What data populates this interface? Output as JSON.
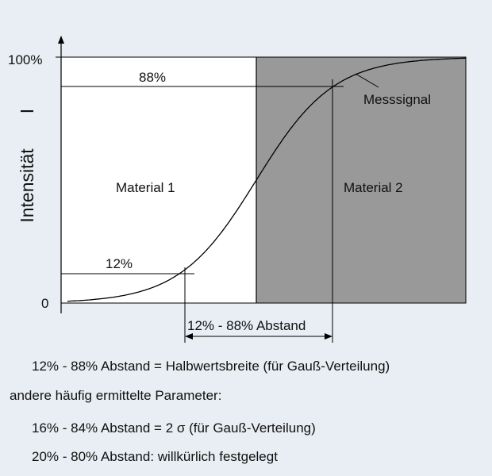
{
  "diagram": {
    "y_top_label": "100%",
    "y_zero_label": "0",
    "y_axis_title": "Intensität",
    "y_axis_symbol": "I",
    "label_88": "88%",
    "label_12": "12%",
    "signal_label": "Messsignal",
    "material_1": "Material 1",
    "material_2": "Material 2",
    "distance_label": "12% - 88% Abstand",
    "colors": {
      "background": "#e8eef3",
      "material_1_fill": "#ffffff",
      "material_2_fill": "#999999",
      "line": "#000000"
    }
  },
  "notes": {
    "line1": "12% - 88% Abstand = Halbwertsbreite (für Gauß-Verteilung)",
    "line2": "andere häufig ermittelte Parameter:",
    "line3": "16% - 84% Abstand = 2 σ (für Gauß-Verteilung)",
    "line4": "20% - 80% Abstand: willkürlich festgelegt"
  }
}
